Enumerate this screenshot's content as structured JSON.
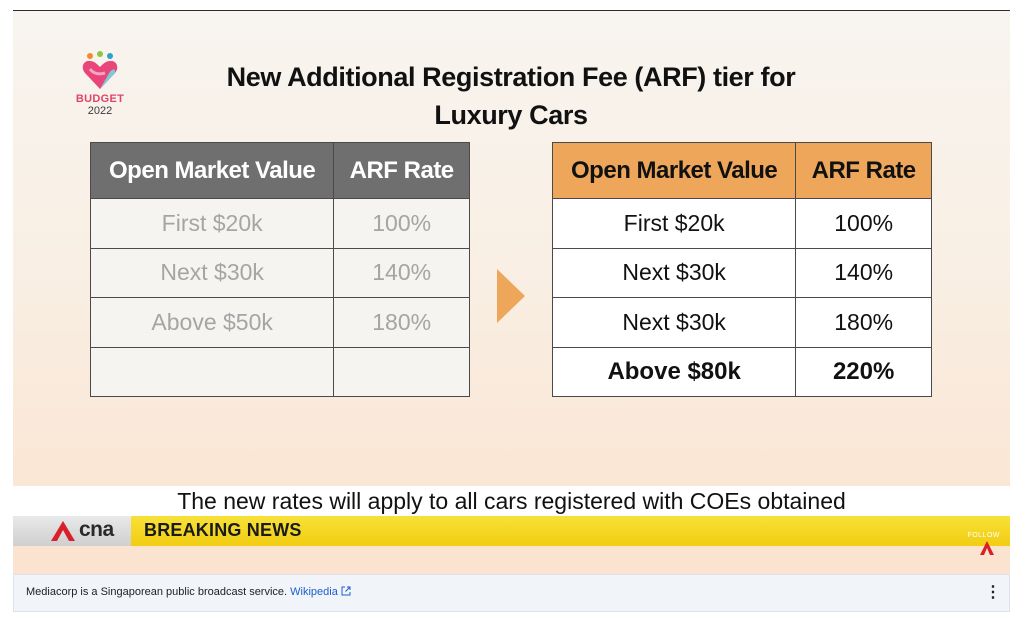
{
  "slide": {
    "logo_word": "BUDGET",
    "logo_year": "2022",
    "title_line1": "New Additional Registration Fee (ARF) tier for",
    "title_line2": "Luxury Cars",
    "old_table": {
      "headers": [
        "Open Market Value",
        "ARF Rate"
      ],
      "rows": [
        [
          "First $20k",
          "100%"
        ],
        [
          "Next $30k",
          "140%"
        ],
        [
          "Above $50k",
          "180%"
        ],
        [
          "",
          ""
        ]
      ]
    },
    "new_table": {
      "headers": [
        "Open Market Value",
        "ARF Rate"
      ],
      "rows": [
        [
          "First $20k",
          "100%"
        ],
        [
          "Next $30k",
          "140%"
        ],
        [
          "Next $30k",
          "180%"
        ],
        [
          "Above $80k",
          "220%"
        ]
      ]
    },
    "arrow_icon": "play-arrow-icon"
  },
  "caption": "The new rates will apply to all cars registered with COEs obtained",
  "ticker": {
    "brand": "cna",
    "label": "BREAKING NEWS",
    "follow": "FOLLOW"
  },
  "info_bar": {
    "text": "Mediacorp is a Singaporean public broadcast service.",
    "link": "Wikipedia",
    "more_icon": "more-vert-icon"
  },
  "colors": {
    "old_header_bg": "#6f6f6f",
    "new_header_bg": "#eda65a",
    "arrow": "#eda65a",
    "ticker_yellow": "#f2cd12",
    "cna_red": "#d7202a",
    "link_blue": "#1a5fd0"
  }
}
